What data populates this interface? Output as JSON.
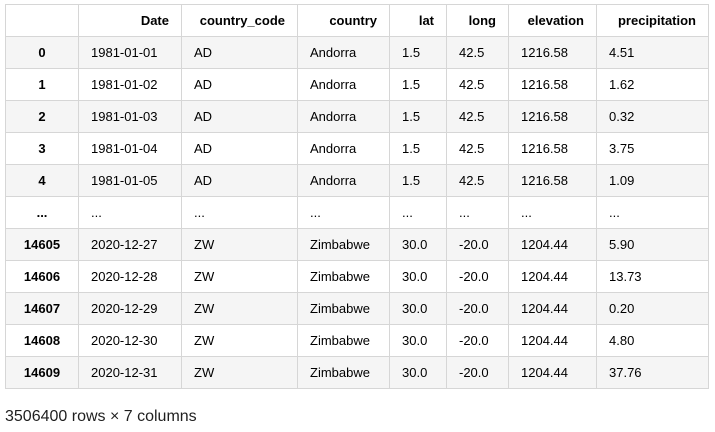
{
  "dataframe": {
    "columns": [
      "Date",
      "country_code",
      "country",
      "lat",
      "long",
      "elevation",
      "precipitation"
    ],
    "rows": [
      {
        "index": "0",
        "cells": [
          "1981-01-01",
          "AD",
          "Andorra",
          "1.5",
          "42.5",
          "1216.58",
          "4.51"
        ]
      },
      {
        "index": "1",
        "cells": [
          "1981-01-02",
          "AD",
          "Andorra",
          "1.5",
          "42.5",
          "1216.58",
          "1.62"
        ]
      },
      {
        "index": "2",
        "cells": [
          "1981-01-03",
          "AD",
          "Andorra",
          "1.5",
          "42.5",
          "1216.58",
          "0.32"
        ]
      },
      {
        "index": "3",
        "cells": [
          "1981-01-04",
          "AD",
          "Andorra",
          "1.5",
          "42.5",
          "1216.58",
          "3.75"
        ]
      },
      {
        "index": "4",
        "cells": [
          "1981-01-05",
          "AD",
          "Andorra",
          "1.5",
          "42.5",
          "1216.58",
          "1.09"
        ]
      },
      {
        "index": "...",
        "cells": [
          "...",
          "...",
          "...",
          "...",
          "...",
          "...",
          "..."
        ]
      },
      {
        "index": "14605",
        "cells": [
          "2020-12-27",
          "ZW",
          "Zimbabwe",
          "30.0",
          "-20.0",
          "1204.44",
          "5.90"
        ]
      },
      {
        "index": "14606",
        "cells": [
          "2020-12-28",
          "ZW",
          "Zimbabwe",
          "30.0",
          "-20.0",
          "1204.44",
          "13.73"
        ]
      },
      {
        "index": "14607",
        "cells": [
          "2020-12-29",
          "ZW",
          "Zimbabwe",
          "30.0",
          "-20.0",
          "1204.44",
          "0.20"
        ]
      },
      {
        "index": "14608",
        "cells": [
          "2020-12-30",
          "ZW",
          "Zimbabwe",
          "30.0",
          "-20.0",
          "1204.44",
          "4.80"
        ]
      },
      {
        "index": "14609",
        "cells": [
          "2020-12-31",
          "ZW",
          "Zimbabwe",
          "30.0",
          "-20.0",
          "1204.44",
          "37.76"
        ]
      }
    ],
    "shape_text": "3506400 rows × 7 columns"
  }
}
